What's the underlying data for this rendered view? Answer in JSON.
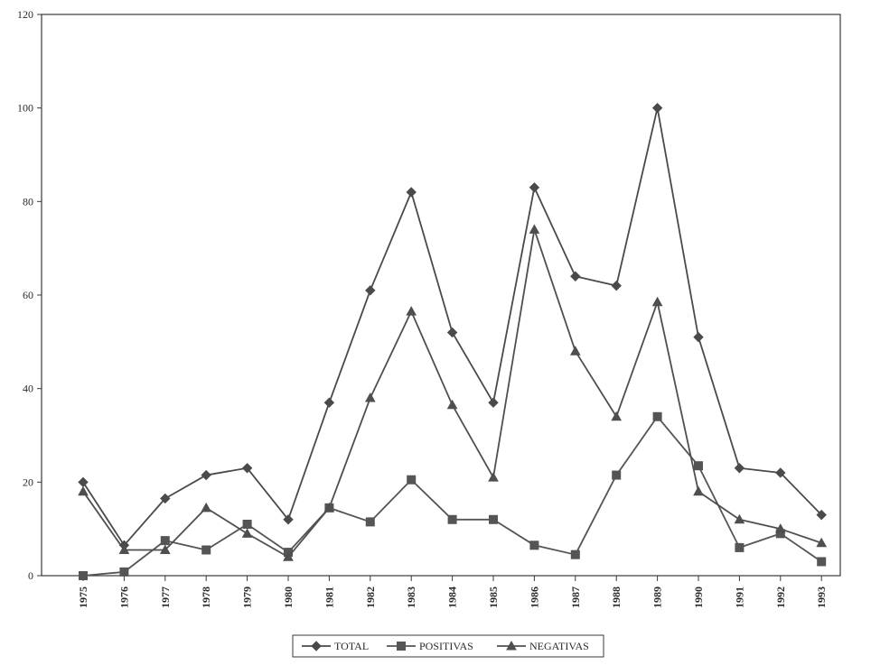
{
  "chart_data": {
    "type": "line",
    "title": "",
    "xlabel": "",
    "ylabel": "",
    "ylim": [
      0,
      120
    ],
    "yticks": [
      0,
      20,
      40,
      60,
      80,
      100,
      120
    ],
    "grid": false,
    "legend_position": "bottom-center",
    "categories": [
      "1975",
      "1976",
      "1977",
      "1978",
      "1979",
      "1980",
      "1981",
      "1982",
      "1983",
      "1984",
      "1985",
      "1986",
      "1987",
      "1988",
      "1989",
      "1990",
      "1991",
      "1992",
      "1993"
    ],
    "series": [
      {
        "name": "TOTAL",
        "marker": "diamond",
        "color": "#4a4a4a",
        "values": [
          20,
          6.5,
          16.5,
          21.5,
          23,
          12,
          37,
          61,
          82,
          52,
          37,
          83,
          64,
          62,
          100,
          51,
          23,
          22,
          13
        ]
      },
      {
        "name": "POSITIVAS",
        "marker": "square",
        "color": "#555555",
        "values": [
          0,
          0.8,
          7.5,
          5.5,
          11,
          5,
          14.5,
          11.5,
          20.5,
          12,
          12,
          6.5,
          4.5,
          21.5,
          34,
          23.5,
          6,
          9,
          3
        ]
      },
      {
        "name": "NEGATIVAS",
        "marker": "triangle",
        "color": "#4f4f4f",
        "values": [
          18,
          5.5,
          5.5,
          14.5,
          9,
          4,
          14.5,
          38,
          56.5,
          36.5,
          21,
          74,
          48,
          34,
          58.5,
          18,
          12,
          10,
          7
        ]
      }
    ]
  }
}
